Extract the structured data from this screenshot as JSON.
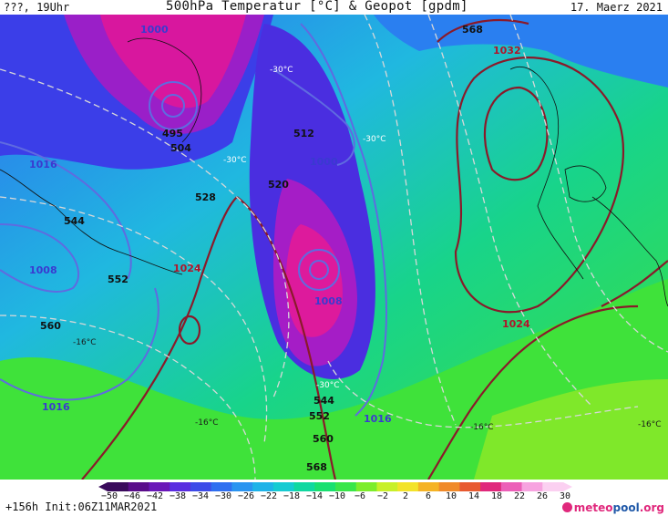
{
  "header": {
    "left": "???, 19Uhr",
    "title": "500hPa Temperatur [°C] & Geopot [gpdm]",
    "date": "17. Maerz 2021"
  },
  "footer": {
    "run_info": "+156h Init:06Z11MAR2021",
    "logo_part1": "meteo",
    "logo_part2": "pool",
    "logo_part3": ".org"
  },
  "colorbar": {
    "labels": [
      "−50",
      "−46",
      "−42",
      "−38",
      "−34",
      "−30",
      "−26",
      "−22",
      "−18",
      "−14",
      "−10",
      "−6",
      "−2",
      "2",
      "6",
      "10",
      "14",
      "18",
      "22",
      "26",
      "30"
    ],
    "colors": [
      "#3a0b5c",
      "#5a0d8a",
      "#6a17b8",
      "#5a2de0",
      "#3d4be8",
      "#2f6ff0",
      "#2a94f0",
      "#1fb3e8",
      "#16cbd2",
      "#10d8a0",
      "#19e070",
      "#39e64a",
      "#7ded2c",
      "#c8f02a",
      "#f3e32a",
      "#f5b325",
      "#f08a2a",
      "#e85a30",
      "#e0287c",
      "#ec5fb8",
      "#f7a3e0",
      "#fbd0f1"
    ]
  },
  "map_labels": {
    "geopot": [
      "568",
      "1032",
      "495",
      "504",
      "512",
      "528",
      "520",
      "544",
      "552",
      "560",
      "544",
      "552",
      "560",
      "568",
      "1024",
      "1024"
    ],
    "isobars": [
      "1000",
      "1016",
      "1008",
      "1016",
      "1016",
      "1000",
      "1008"
    ],
    "temps": [
      "-30°C",
      "-30°C",
      "-30°C",
      "-30°C",
      "-16°C",
      "-16°C",
      "-16°C",
      "-16°C"
    ]
  },
  "colors": {
    "geopot_line": "#8a1a2a",
    "isobar_line": "#5f6be0",
    "isotherm_line": "#d8d8d8",
    "isobar_label": "#3a3ad0",
    "warm_label": "#b0152a"
  }
}
